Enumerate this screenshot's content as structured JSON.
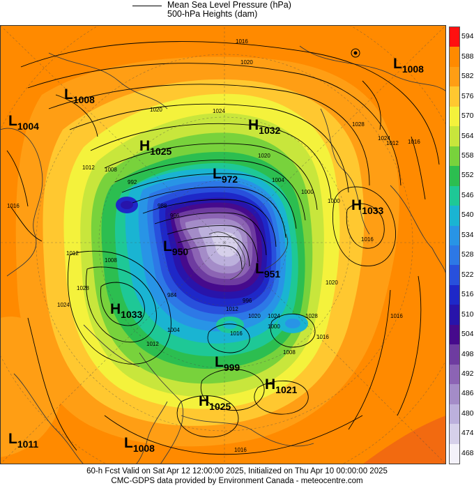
{
  "legend": {
    "mslp_label": "Mean Sea Level Pressure (hPa)",
    "z500_label": "500-hPa Heights (dam)"
  },
  "colorbar": {
    "levels": [
      "594",
      "588",
      "582",
      "576",
      "570",
      "564",
      "558",
      "552",
      "546",
      "540",
      "534",
      "528",
      "522",
      "516",
      "510",
      "504",
      "498",
      "492",
      "486",
      "480",
      "474",
      "468"
    ],
    "colors": [
      "#ff1010",
      "#ff8a00",
      "#ff9e14",
      "#ffc830",
      "#f4f23c",
      "#c8e63c",
      "#78d23c",
      "#2cbe50",
      "#1ec896",
      "#1ab4d2",
      "#2894e6",
      "#2d78e6",
      "#2850dc",
      "#1e28c8",
      "#2814aa",
      "#460a8c",
      "#6e3ca0",
      "#8c64b4",
      "#a48cc8",
      "#bcb0dc",
      "#d6d0ea",
      "#f4f2fa"
    ]
  },
  "pressure_centres": [
    {
      "letter": "L",
      "value": "1008",
      "color": "#000"
    },
    {
      "letter": "L",
      "value": "1004",
      "color": "#000"
    },
    {
      "letter": "H",
      "value": "1025",
      "color": "#000"
    },
    {
      "letter": "H",
      "value": "1032",
      "color": "#000"
    },
    {
      "letter": "L",
      "value": "1008",
      "color": "#000"
    },
    {
      "letter": "H",
      "value": "1033",
      "color": "#000"
    },
    {
      "letter": "L",
      "value": "972",
      "color": "#2a2a80"
    },
    {
      "letter": "L",
      "value": "950",
      "color": "#000"
    },
    {
      "letter": "L",
      "value": "951",
      "color": "#000"
    },
    {
      "letter": "H",
      "value": "1033",
      "color": "#000"
    },
    {
      "letter": "L",
      "value": "999",
      "color": "#000"
    },
    {
      "letter": "H",
      "value": "1021",
      "color": "#000"
    },
    {
      "letter": "H",
      "value": "1025",
      "color": "#000"
    },
    {
      "letter": "L",
      "value": "1011",
      "color": "#000"
    },
    {
      "letter": "L",
      "value": "1008",
      "color": "#000"
    }
  ],
  "isobar_labels": [
    "1016",
    "1020",
    "1024",
    "1020",
    "1012",
    "1008",
    "1016",
    "1028",
    "1024",
    "1012",
    "1016",
    "1020",
    "1004",
    "1000",
    "992",
    "988",
    "996",
    "1000",
    "1016",
    "1008",
    "1012",
    "1028",
    "1024",
    "1020",
    "1016",
    "1016",
    "1028",
    "1024",
    "1020",
    "984",
    "1004",
    "1012",
    "996",
    "1016",
    "1000",
    "1008",
    "1012",
    "1016"
  ],
  "footer": {
    "line1": "60-h Fcst Valid on Sat Apr 12 12:00:00 2025, Initialized on Thu Apr 10 00:00:00 2025",
    "line2": "CMC-GDPS data provided by Environment Canada - meteocentre.com"
  }
}
